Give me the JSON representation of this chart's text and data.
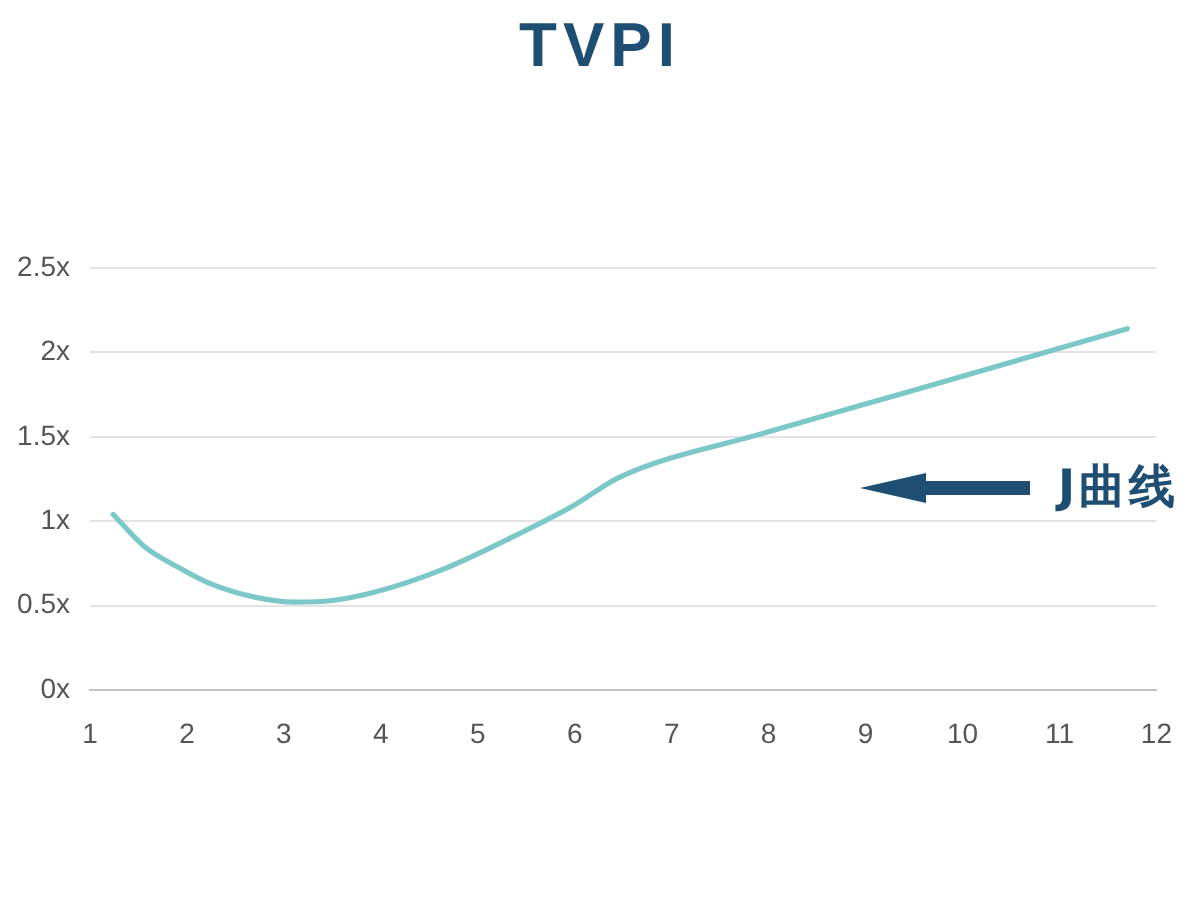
{
  "chart_data": {
    "type": "line",
    "title": "TVPI",
    "x": [
      1.24,
      1.56,
      1.9,
      2.24,
      2.7,
      3.12,
      3.5,
      3.94,
      4.62,
      5.3,
      5.98,
      6.46,
      8,
      9.4,
      11.7
    ],
    "values": [
      1.04,
      0.85,
      0.73,
      0.63,
      0.55,
      0.52,
      0.53,
      0.58,
      0.71,
      0.89,
      1.09,
      1.26,
      1.53,
      1.76,
      2.14
    ],
    "color": "#7cc8c8",
    "xlim": [
      1,
      12
    ],
    "xticks": [
      1,
      2,
      3,
      4,
      5,
      6,
      7,
      8,
      9,
      10,
      11,
      12
    ],
    "ylim": [
      0,
      2.5
    ],
    "yticks": [
      {
        "value": 0,
        "label": "0x"
      },
      {
        "value": 0.5,
        "label": "0.5x"
      },
      {
        "value": 1,
        "label": "1x"
      },
      {
        "value": 1.5,
        "label": "1.5x"
      },
      {
        "value": 2,
        "label": "2x"
      },
      {
        "value": 2.5,
        "label": "2.5x"
      }
    ],
    "grid": "y",
    "legend": false,
    "marker": "none",
    "line_style": "solid",
    "annotations": [
      "J曲线"
    ]
  }
}
